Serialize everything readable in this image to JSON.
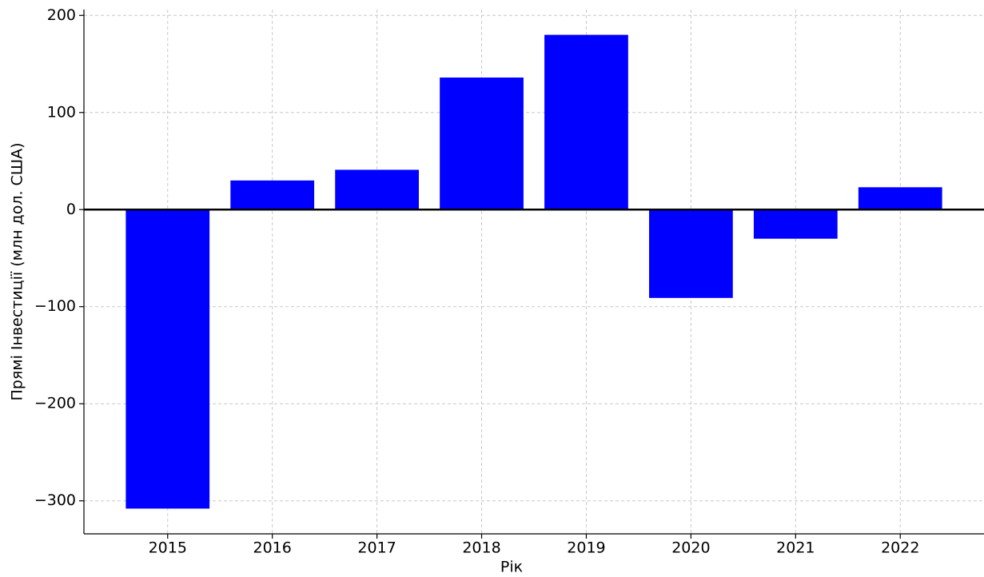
{
  "chart_data": {
    "type": "bar",
    "x_label": "Рік",
    "y_label": "Прямі Інвестиції (млн дол. США)",
    "categories": [
      "2015",
      "2016",
      "2017",
      "2018",
      "2019",
      "2020",
      "2021",
      "2022"
    ],
    "values": [
      -308,
      30,
      41,
      136,
      180,
      -91,
      -30,
      23
    ],
    "color": "#0000ff",
    "ylim": [
      -334,
      206
    ],
    "yticks": [
      {
        "value": -300,
        "label": "−300"
      },
      {
        "value": -200,
        "label": "−200"
      },
      {
        "value": -100,
        "label": "−100"
      },
      0,
      100,
      200
    ],
    "grid": true
  }
}
